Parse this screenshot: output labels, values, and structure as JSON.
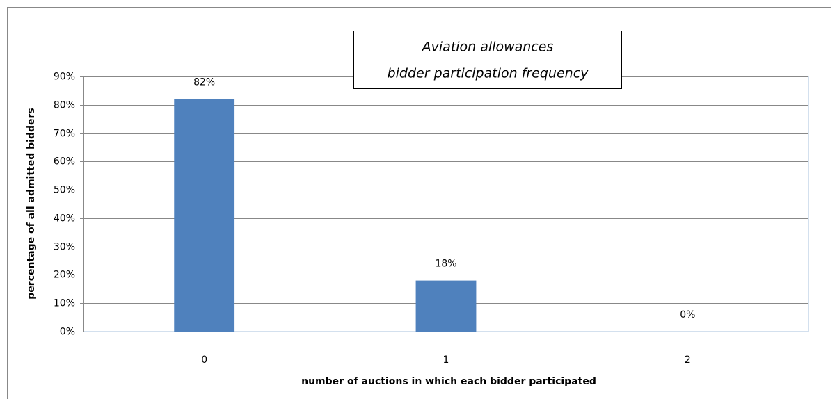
{
  "chart_data": {
    "type": "bar",
    "title": [
      "Aviation allowances",
      "bidder participation frequency"
    ],
    "xlabel": "number of auctions in which each bidder participated",
    "ylabel": "percentage of all admitted bidders",
    "categories": [
      "0",
      "1",
      "2"
    ],
    "values": [
      82,
      18,
      0
    ],
    "value_labels": [
      "82%",
      "18%",
      "0%"
    ],
    "color": "#4f81bd",
    "ylim": [
      0,
      90
    ],
    "yticks": [
      {
        "value": 0,
        "label": "0%"
      },
      {
        "value": 10,
        "label": "10%"
      },
      {
        "value": 20,
        "label": "20%"
      },
      {
        "value": 30,
        "label": "30%"
      },
      {
        "value": 40,
        "label": "40%"
      },
      {
        "value": 50,
        "label": "50%"
      },
      {
        "value": 60,
        "label": "60%"
      },
      {
        "value": 70,
        "label": "70%"
      },
      {
        "value": 80,
        "label": "80%"
      },
      {
        "value": 90,
        "label": "90%"
      }
    ],
    "grid": true
  }
}
